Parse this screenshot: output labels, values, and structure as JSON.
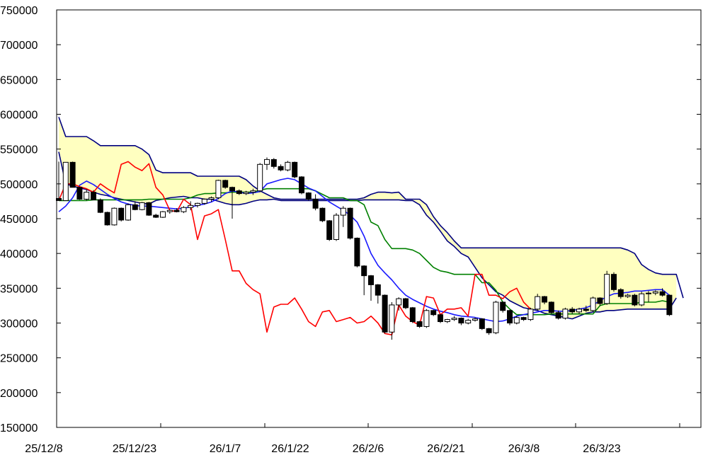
{
  "chart_data": {
    "type": "candlestick",
    "title": "",
    "xlabel": "",
    "ylabel": "",
    "ylim": [
      150000,
      750000
    ],
    "y_ticks": [
      "750000",
      "700000",
      "650000",
      "600000",
      "550000",
      "500000",
      "450000",
      "400000",
      "350000",
      "300000",
      "250000",
      "200000",
      "150000"
    ],
    "x_tick_labels": [
      "25/12/8",
      "25/12/23",
      "26/1/7",
      "26/1/22",
      "26/2/6",
      "26/2/21",
      "26/3/8",
      "26/3/23"
    ],
    "grid": false,
    "legend": "none",
    "colors": {
      "frame": "#000000",
      "tenkan": "#1a1aff",
      "kijun": "#008000",
      "chikou": "#ff0000",
      "span_lines": "#000080",
      "cloud_bear": "#ffffc0",
      "cloud_bull": "#99dde0",
      "candle_up": "#ffffff",
      "candle_down": "#000000"
    },
    "candles": [
      [
        479000,
        532000,
        476000,
        476000
      ],
      [
        476000,
        531000,
        476000,
        531000
      ],
      [
        531000,
        532000,
        495000,
        495000
      ],
      [
        495000,
        496000,
        477000,
        478000
      ],
      [
        478000,
        492000,
        476000,
        488000
      ],
      [
        488000,
        491000,
        477000,
        477000
      ],
      [
        477000,
        479000,
        458000,
        459000
      ],
      [
        459000,
        460000,
        440000,
        441000
      ],
      [
        441000,
        466000,
        440000,
        465000
      ],
      [
        465000,
        466000,
        446000,
        448000
      ],
      [
        448000,
        472000,
        447000,
        470000
      ],
      [
        470000,
        475000,
        462000,
        463000
      ],
      [
        463000,
        474000,
        462000,
        473000
      ],
      [
        473000,
        474000,
        454000,
        455000
      ],
      [
        455000,
        457000,
        451000,
        452000
      ],
      [
        452000,
        461000,
        451000,
        460000
      ],
      [
        460000,
        463000,
        457000,
        462000
      ],
      [
        462000,
        465000,
        459000,
        460000
      ],
      [
        460000,
        468000,
        458000,
        466000
      ],
      [
        466000,
        475000,
        462000,
        469000
      ],
      [
        469000,
        473000,
        466000,
        472000
      ],
      [
        472000,
        479000,
        470000,
        478000
      ],
      [
        478000,
        482000,
        474000,
        480000
      ],
      [
        480000,
        506000,
        478000,
        505000
      ],
      [
        505000,
        506000,
        493000,
        495000
      ],
      [
        495000,
        496000,
        450000,
        490000
      ],
      [
        490000,
        492000,
        484000,
        486000
      ],
      [
        486000,
        490000,
        484000,
        488000
      ],
      [
        488000,
        493000,
        484000,
        490000
      ],
      [
        490000,
        530000,
        488000,
        528000
      ],
      [
        528000,
        538000,
        520000,
        535000
      ],
      [
        535000,
        537000,
        522000,
        525000
      ],
      [
        525000,
        528000,
        518000,
        520000
      ],
      [
        520000,
        533000,
        518000,
        531000
      ],
      [
        531000,
        532000,
        508000,
        510000
      ],
      [
        510000,
        511000,
        485000,
        487000
      ],
      [
        487000,
        488000,
        476000,
        478000
      ],
      [
        478000,
        485000,
        462000,
        465000
      ],
      [
        465000,
        466000,
        445000,
        447000
      ],
      [
        447000,
        448000,
        418000,
        420000
      ],
      [
        420000,
        458000,
        418000,
        455000
      ],
      [
        455000,
        468000,
        438000,
        465000
      ],
      [
        465000,
        466000,
        420000,
        422000
      ],
      [
        422000,
        423000,
        380000,
        382000
      ],
      [
        382000,
        383000,
        340000,
        368000
      ],
      [
        368000,
        369000,
        332000,
        355000
      ],
      [
        355000,
        356000,
        328000,
        340000
      ],
      [
        340000,
        341000,
        285000,
        287000
      ],
      [
        287000,
        330000,
        276000,
        326000
      ],
      [
        326000,
        337000,
        318000,
        335000
      ],
      [
        335000,
        336000,
        320000,
        322000
      ],
      [
        322000,
        323000,
        300000,
        302000
      ],
      [
        302000,
        303000,
        293000,
        295000
      ],
      [
        295000,
        320000,
        293000,
        318000
      ],
      [
        318000,
        319000,
        310000,
        312000
      ],
      [
        312000,
        313000,
        300000,
        302000
      ],
      [
        302000,
        306000,
        300000,
        305000
      ],
      [
        305000,
        310000,
        303000,
        307000
      ],
      [
        307000,
        308000,
        297000,
        300000
      ],
      [
        300000,
        306000,
        298000,
        304000
      ],
      [
        304000,
        308000,
        302000,
        306000
      ],
      [
        306000,
        307000,
        290000,
        292000
      ],
      [
        292000,
        293000,
        283000,
        286000
      ],
      [
        286000,
        332000,
        284000,
        330000
      ],
      [
        330000,
        331000,
        315000,
        318000
      ],
      [
        318000,
        319000,
        297000,
        300000
      ],
      [
        300000,
        310000,
        298000,
        308000
      ],
      [
        308000,
        309000,
        303000,
        305000
      ],
      [
        305000,
        322000,
        303000,
        320000
      ],
      [
        320000,
        342000,
        318000,
        338000
      ],
      [
        338000,
        339000,
        327000,
        330000
      ],
      [
        330000,
        331000,
        313000,
        315000
      ],
      [
        315000,
        318000,
        305000,
        307000
      ],
      [
        307000,
        322000,
        305000,
        320000
      ],
      [
        320000,
        323000,
        313000,
        316000
      ],
      [
        316000,
        322000,
        313000,
        320000
      ],
      [
        320000,
        325000,
        316000,
        318000
      ],
      [
        318000,
        338000,
        316000,
        336000
      ],
      [
        336000,
        337000,
        325000,
        328000
      ],
      [
        328000,
        375000,
        326000,
        370000
      ],
      [
        370000,
        373000,
        345000,
        348000
      ],
      [
        348000,
        350000,
        335000,
        338000
      ],
      [
        338000,
        342000,
        336000,
        340000
      ],
      [
        340000,
        342000,
        324000,
        326000
      ],
      [
        326000,
        345000,
        324000,
        342000
      ],
      [
        342000,
        346000,
        330000,
        343000
      ],
      [
        343000,
        347000,
        340000,
        345000
      ],
      [
        345000,
        350000,
        338000,
        340000
      ],
      [
        340000,
        341000,
        310000,
        312000
      ]
    ],
    "series": [
      {
        "values": [
          460000,
          468000,
          480000,
          498000,
          504000,
          499000,
          492000,
          485000,
          479000,
          474000,
          471000,
          469000,
          468000,
          468000,
          467000,
          466000,
          465000,
          464000,
          465000,
          467000,
          469000,
          471000,
          474000,
          479000,
          486000,
          490000,
          488000,
          486000,
          487000,
          489000,
          500000,
          503000,
          506000,
          508000,
          506000,
          500000,
          494000,
          490000,
          482000,
          474000,
          468000,
          462000,
          455000,
          445000,
          425000,
          400000,
          383000,
          372000,
          362000,
          350000,
          340000,
          334000,
          329000,
          324000,
          320000,
          317000,
          315000,
          312000,
          310000,
          309000,
          308000,
          306000,
          304000,
          302000,
          303000,
          306000,
          310000,
          312000,
          314000,
          316000,
          318000,
          318000,
          317000,
          317000,
          318000,
          320000,
          322000,
          326000,
          332000,
          338000,
          342000,
          343000,
          344000,
          346000,
          346000,
          347000,
          348000,
          348000,
          340000
        ]
      },
      {
        "values": [
          476000,
          476000,
          476000,
          476000,
          476000,
          477000,
          477000,
          477000,
          477000,
          477000,
          477000,
          477000,
          477000,
          478000,
          478000,
          478000,
          478000,
          478000,
          478000,
          480000,
          484000,
          486000,
          486000,
          487000,
          487000,
          488000,
          488000,
          488000,
          488000,
          491000,
          493000,
          493000,
          493000,
          493000,
          493000,
          493000,
          493000,
          490000,
          485000,
          480000,
          480000,
          480000,
          476000,
          476000,
          470000,
          445000,
          440000,
          420000,
          407000,
          407000,
          407000,
          405000,
          400000,
          390000,
          380000,
          375000,
          373000,
          370000,
          370000,
          370000,
          370000,
          358000,
          358000,
          347000,
          330000,
          320000,
          312000,
          312000,
          312000,
          312000,
          312000,
          313000,
          313000,
          313000,
          313000,
          313000,
          313000,
          313000,
          325000,
          328000,
          328000,
          328000,
          328000,
          328000,
          330000,
          330000,
          330000,
          332000,
          330000
        ]
      },
      {
        "values": [
          476000,
          500000,
          500000,
          496000,
          493000,
          488000,
          500000,
          493000,
          487000,
          528000,
          532000,
          524000,
          519000,
          529000,
          495000,
          484000,
          462000,
          460000,
          478000,
          470000,
          420000,
          454000,
          457000,
          463000,
          420000,
          375000,
          375000,
          357000,
          348000,
          342000,
          287000,
          323000,
          327000,
          327000,
          336000,
          320000,
          302000,
          295000,
          316000,
          318000,
          302000,
          305000,
          308000,
          300000,
          302000,
          310000,
          300000,
          285000,
          283000,
          326000,
          310000,
          302000,
          297000,
          338000,
          336000,
          312000,
          320000,
          320000,
          322000,
          310000,
          370000,
          370000,
          340000,
          340000,
          335000,
          345000,
          350000,
          330000,
          320000
        ]
      },
      {
        "values": [
          596000,
          568000,
          568000,
          568000,
          568000,
          562000,
          555000,
          555000,
          555000,
          555000,
          555000,
          555000,
          550000,
          542000,
          520000,
          516000,
          516000,
          516000,
          516000,
          516000,
          511000,
          511000,
          511000,
          511000,
          511000,
          511000,
          511000,
          506000,
          497000,
          490000,
          485000,
          480000,
          478000,
          478000,
          478000,
          478000,
          478000,
          478000,
          478000,
          478000,
          478000,
          478000,
          478000,
          478000,
          480000,
          485000,
          488000,
          488000,
          487000,
          488000,
          478000,
          478000,
          478000,
          470000,
          453000,
          440000,
          430000,
          418000,
          408000,
          408000,
          408000,
          408000,
          408000,
          408000,
          408000,
          408000,
          408000,
          408000,
          408000,
          408000,
          408000,
          408000,
          408000,
          408000,
          408000,
          408000,
          408000,
          408000,
          408000,
          408000,
          408000,
          408000,
          405000,
          400000,
          384000,
          377000,
          372000,
          370000,
          370000,
          370000,
          336000
        ]
      },
      {
        "values": [
          546000,
          500000,
          497000,
          494000,
          492000,
          488000,
          485000,
          483000,
          480000,
          478000,
          476000,
          474000,
          472000,
          471000,
          476000,
          478000,
          480000,
          481000,
          482000,
          480000,
          480000,
          478000,
          478000,
          475000,
          472000,
          470000,
          470000,
          472000,
          475000,
          477000,
          477000,
          478000,
          476000,
          476000,
          476000,
          476000,
          476000,
          476000,
          476000,
          476000,
          476000,
          476000,
          476000,
          476000,
          477000,
          477000,
          477000,
          477000,
          477000,
          477000,
          476000,
          476000,
          470000,
          455000,
          445000,
          432000,
          418000,
          410000,
          400000,
          395000,
          380000,
          365000,
          355000,
          345000,
          340000,
          332000,
          327000,
          322000,
          320000,
          318000,
          314000,
          312000,
          310000,
          308000,
          306000,
          310000,
          314000,
          316000,
          316000,
          318000,
          318000,
          319000,
          320000,
          320000,
          320000,
          320000,
          320000,
          320000,
          320000,
          336000
        ]
      }
    ]
  }
}
